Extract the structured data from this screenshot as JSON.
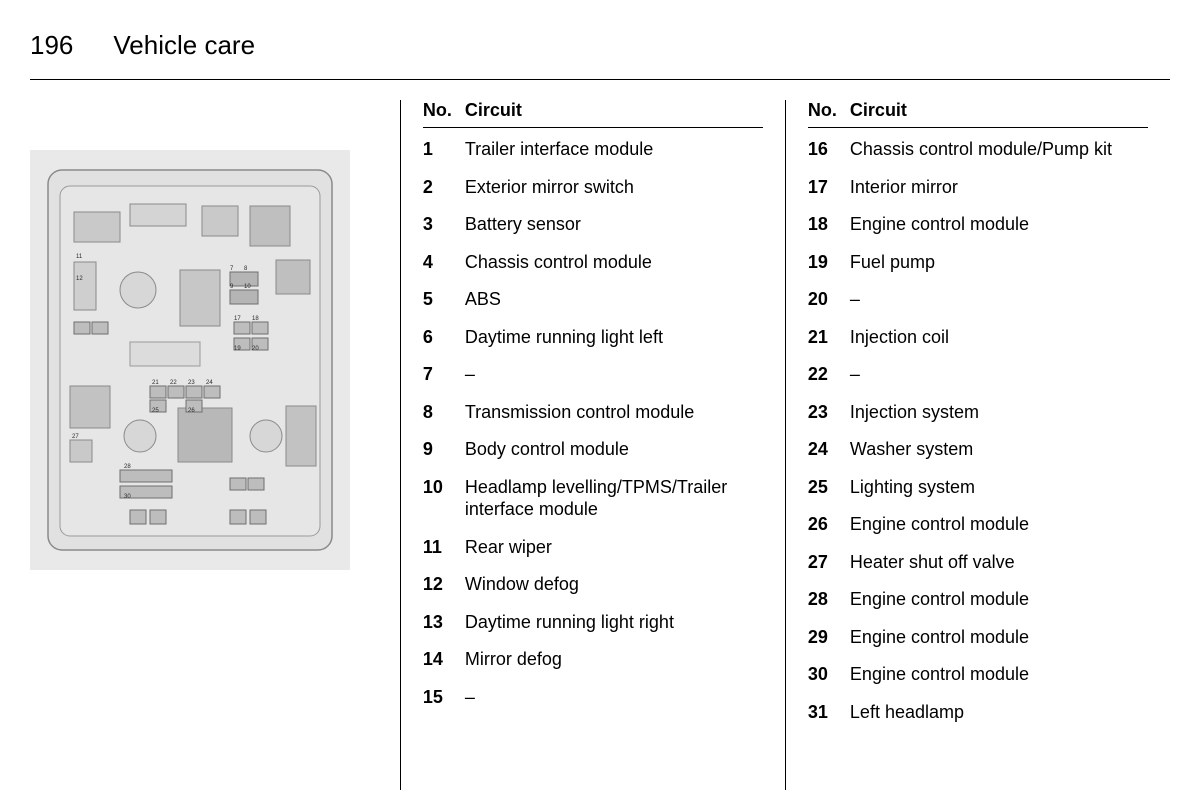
{
  "page": {
    "number": "196",
    "section": "Vehicle care"
  },
  "headers": {
    "no": "No.",
    "circuit": "Circuit"
  },
  "fuse_diagram": {
    "type": "technical-diagram",
    "background": "#ededed",
    "stroke": "#7a7a7a",
    "highlight": "#9d9d9d"
  },
  "table_left": [
    {
      "no": "1",
      "circuit": "Trailer interface module"
    },
    {
      "no": "2",
      "circuit": "Exterior mirror switch"
    },
    {
      "no": "3",
      "circuit": "Battery sensor"
    },
    {
      "no": "4",
      "circuit": "Chassis control module"
    },
    {
      "no": "5",
      "circuit": "ABS"
    },
    {
      "no": "6",
      "circuit": "Daytime running light left"
    },
    {
      "no": "7",
      "circuit": "–"
    },
    {
      "no": "8",
      "circuit": "Transmission control module"
    },
    {
      "no": "9",
      "circuit": "Body control module"
    },
    {
      "no": "10",
      "circuit": "Headlamp levelling/TPMS/Trailer interface module"
    },
    {
      "no": "11",
      "circuit": "Rear wiper"
    },
    {
      "no": "12",
      "circuit": "Window defog"
    },
    {
      "no": "13",
      "circuit": "Daytime running light right"
    },
    {
      "no": "14",
      "circuit": "Mirror defog"
    },
    {
      "no": "15",
      "circuit": "–"
    }
  ],
  "table_right": [
    {
      "no": "16",
      "circuit": "Chassis control module/Pump kit"
    },
    {
      "no": "17",
      "circuit": "Interior mirror"
    },
    {
      "no": "18",
      "circuit": "Engine control module"
    },
    {
      "no": "19",
      "circuit": "Fuel pump"
    },
    {
      "no": "20",
      "circuit": "–"
    },
    {
      "no": "21",
      "circuit": "Injection coil"
    },
    {
      "no": "22",
      "circuit": "–"
    },
    {
      "no": "23",
      "circuit": "Injection system"
    },
    {
      "no": "24",
      "circuit": "Washer system"
    },
    {
      "no": "25",
      "circuit": "Lighting system"
    },
    {
      "no": "26",
      "circuit": "Engine control module"
    },
    {
      "no": "27",
      "circuit": "Heater shut off valve"
    },
    {
      "no": "28",
      "circuit": "Engine control module"
    },
    {
      "no": "29",
      "circuit": "Engine control module"
    },
    {
      "no": "30",
      "circuit": "Engine control module"
    },
    {
      "no": "31",
      "circuit": "Left headlamp"
    }
  ]
}
